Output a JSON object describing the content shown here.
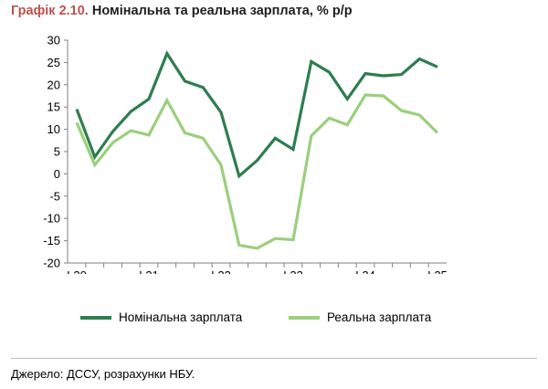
{
  "header": {
    "title_prefix": "Графік 2.10.",
    "title_rest": " Номінальна та реальна зарплата, % р/р"
  },
  "source": "Джерело: ДССУ, розрахунки НБУ.",
  "colors": {
    "nominal": "#2e7d4f",
    "real": "#9bcf7c"
  },
  "chart_data": {
    "type": "line",
    "title": "Номінальна та реальна зарплата, % р/р",
    "ylim": [
      -20,
      30
    ],
    "yticks": [
      30,
      25,
      20,
      15,
      10,
      5,
      0,
      -5,
      -10,
      -15,
      -20
    ],
    "x_ticklabels": [
      "I.20",
      "I.21",
      "I.22",
      "I.23",
      "I.24",
      "I.25"
    ],
    "x": [
      "I.20",
      "II.20",
      "III.20",
      "IV.20",
      "I.21",
      "II.21",
      "III.21",
      "IV.21",
      "I.22",
      "II.22",
      "III.22",
      "IV.22",
      "I.23",
      "II.23",
      "III.23",
      "IV.23",
      "I.24",
      "II.24",
      "III.24",
      "IV.24",
      "I.25"
    ],
    "grid": false,
    "legend": "bottom",
    "series": [
      {
        "name": "Номінальна зарплата",
        "values": [
          14.5,
          3.8,
          9.5,
          14,
          16.8,
          27,
          20.8,
          19.4,
          13.8,
          -0.5,
          3,
          8,
          5.5,
          25.2,
          22.8,
          16.8,
          22.5,
          22,
          22.3,
          25.8,
          24
        ]
      },
      {
        "name": "Реальна зарплата",
        "values": [
          11.5,
          2,
          7,
          9.7,
          8.7,
          16.5,
          9.2,
          8,
          2,
          -16,
          -16.7,
          -14.5,
          -14.8,
          8.5,
          12.5,
          11,
          17.7,
          17.5,
          14.2,
          13.2,
          9.2
        ]
      }
    ]
  }
}
